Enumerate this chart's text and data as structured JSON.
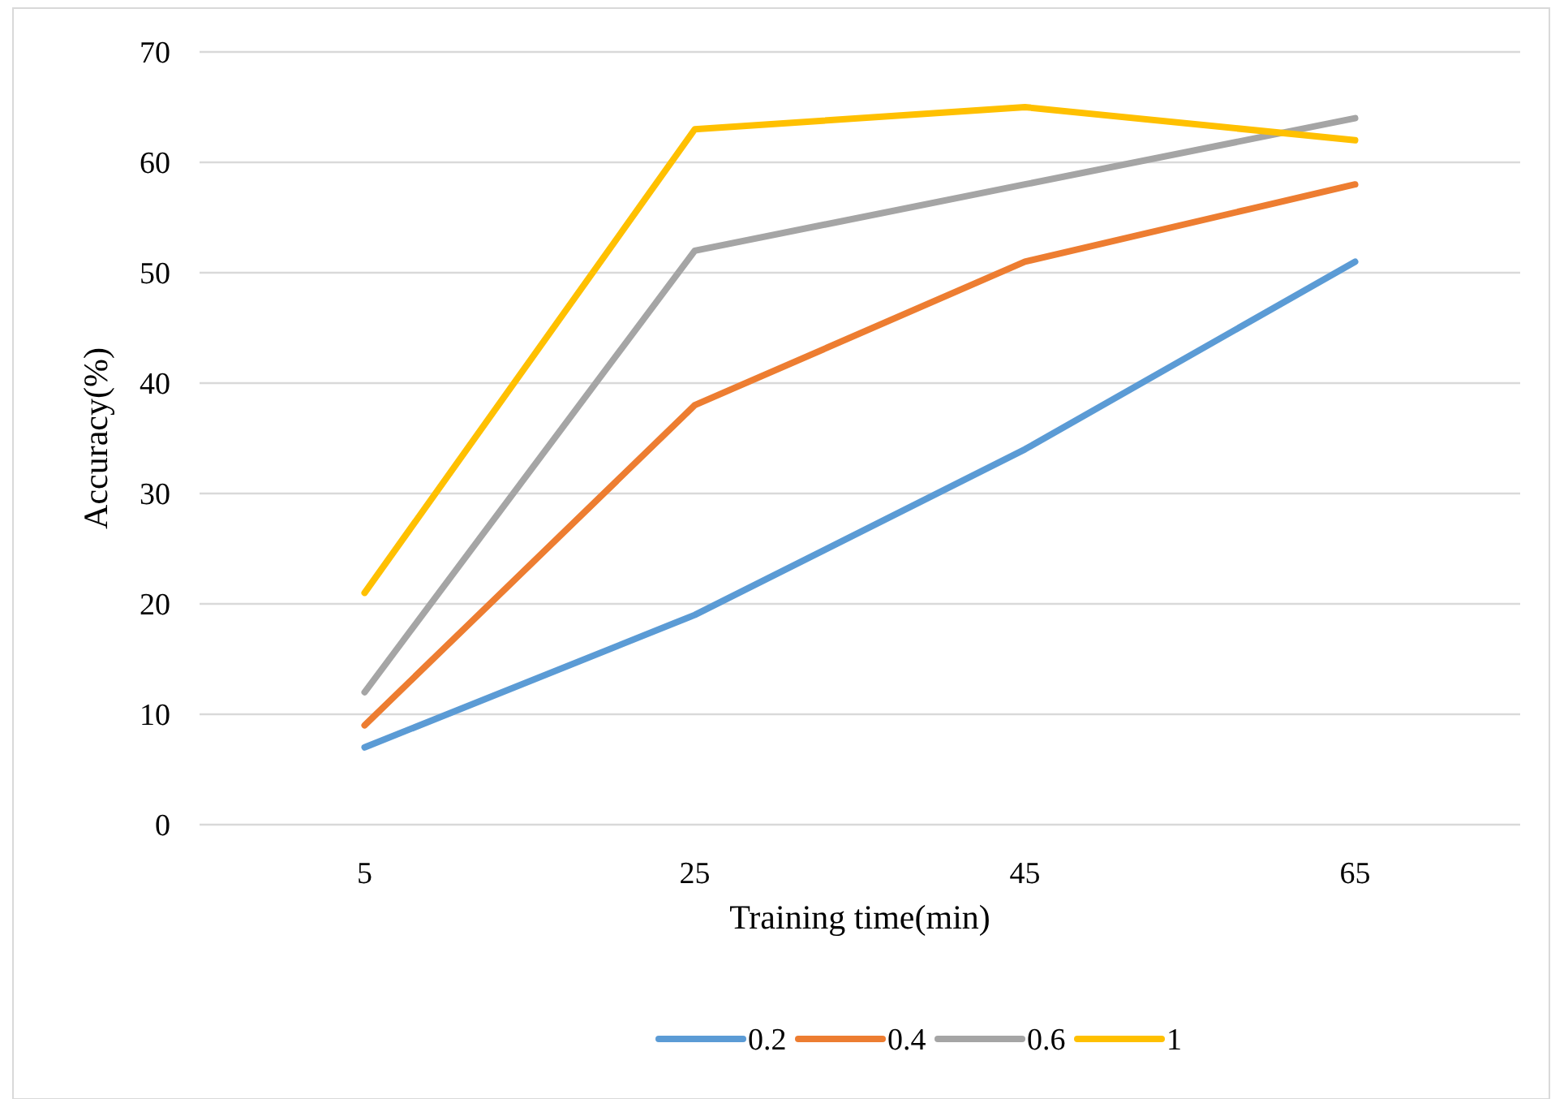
{
  "chart_data": {
    "type": "line",
    "xlabel": "Training time(min)",
    "ylabel": "Accuracy(%)",
    "categories": [
      "5",
      "25",
      "45",
      "65"
    ],
    "series": [
      {
        "name": "0.2",
        "color": "#5b9bd5",
        "values": [
          7,
          19,
          34,
          51
        ]
      },
      {
        "name": "0.4",
        "color": "#ed7d31",
        "values": [
          9,
          38,
          51,
          58
        ]
      },
      {
        "name": "0.6",
        "color": "#a5a5a5",
        "values": [
          12,
          52,
          58,
          64
        ]
      },
      {
        "name": "1",
        "color": "#ffc000",
        "values": [
          21,
          63,
          65,
          62
        ]
      }
    ],
    "ylim": [
      0,
      70
    ],
    "yticks": [
      0,
      10,
      20,
      30,
      40,
      50,
      60,
      70
    ],
    "grid": "y",
    "legend": "bottom",
    "marker": "none",
    "line_style": "solid"
  }
}
